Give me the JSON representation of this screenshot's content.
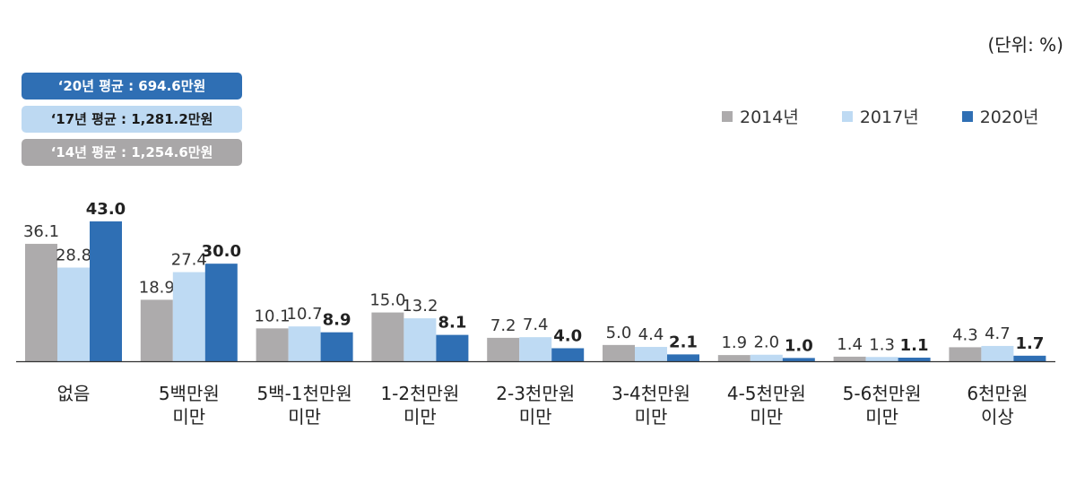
{
  "unit_label": "(단위: %)",
  "badges": [
    {
      "text": "‘20년 평균 : 694.6만원",
      "bg": "#2f6fb4",
      "color": "#ffffff"
    },
    {
      "text": "‘17년 평균 : 1,281.2만원",
      "bg": "#bdd9f2",
      "color": "#1a1a1a"
    },
    {
      "text": "‘14년 평균 : 1,254.6만원",
      "bg": "#a9a7a8",
      "color": "#ffffff"
    }
  ],
  "colors": {
    "2014년": "#adabac",
    "2017년": "#bedaf3",
    "2020년": "#2f6fb4",
    "axis": "#333333"
  },
  "chart_data": {
    "type": "bar",
    "categories": [
      [
        "없음"
      ],
      [
        "5백만원",
        "미만"
      ],
      [
        "5백-1천만원",
        "미만"
      ],
      [
        "1-2천만원",
        "미만"
      ],
      [
        "2-3천만원",
        "미만"
      ],
      [
        "3-4천만원",
        "미만"
      ],
      [
        "4-5천만원",
        "미만"
      ],
      [
        "5-6천만원",
        "미만"
      ],
      [
        "6천만원",
        "이상"
      ]
    ],
    "series": [
      {
        "name": "2014년",
        "values": [
          36.1,
          18.9,
          10.1,
          15.0,
          7.2,
          5.0,
          1.9,
          1.4,
          4.3
        ],
        "labels": [
          "36.1",
          "18.9",
          "10.1",
          "15.0",
          "7.2",
          "5.0",
          "1.9",
          "1.4",
          "4.3"
        ],
        "bold": false
      },
      {
        "name": "2017년",
        "values": [
          28.8,
          27.4,
          10.7,
          13.2,
          7.4,
          4.4,
          2.0,
          1.3,
          4.7
        ],
        "labels": [
          "28.8",
          "27.4",
          "10.7",
          "13.2",
          "7.4",
          "4.4",
          "2.0",
          "1.3",
          "4.7"
        ],
        "bold": false
      },
      {
        "name": "2020년",
        "values": [
          43.0,
          30.0,
          8.9,
          8.1,
          4.0,
          2.1,
          1.0,
          1.1,
          1.7
        ],
        "labels": [
          "43.0",
          "30.0",
          "8.9",
          "8.1",
          "4.0",
          "2.1",
          "1.0",
          "1.1",
          "1.7"
        ],
        "bold": true
      }
    ],
    "ylim": [
      0,
      43
    ],
    "legend_position": "top-right",
    "grid": false
  }
}
